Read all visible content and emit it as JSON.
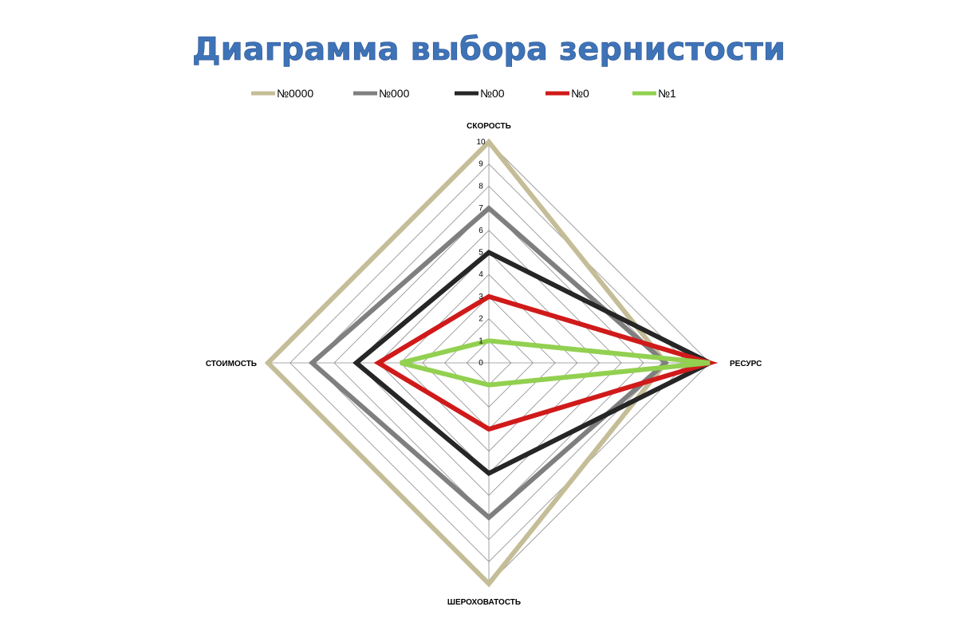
{
  "chart_data": {
    "type": "radar",
    "title": "Диаграмма выбора зернистости",
    "axes": [
      "СКОРОСТЬ",
      "РЕСУРС",
      "ШЕРОХОВАТОСТЬ",
      "СТОИМОСТЬ"
    ],
    "rlim": [
      0,
      10
    ],
    "ticks": [
      "0",
      "1",
      "2",
      "3",
      "4",
      "5",
      "6",
      "7",
      "8",
      "9",
      "10"
    ],
    "grid": true,
    "legend_position": "top",
    "series": [
      {
        "name": "№0000",
        "color": "#c4bd97",
        "values": [
          10,
          8,
          10,
          10
        ]
      },
      {
        "name": "№000",
        "color": "#7f7f7f",
        "values": [
          7,
          8,
          7,
          8
        ]
      },
      {
        "name": "№00",
        "color": "#262626",
        "values": [
          5,
          10,
          5,
          6
        ]
      },
      {
        "name": "№0",
        "color": "#d01a1a",
        "values": [
          3,
          10,
          3,
          5
        ]
      },
      {
        "name": "№1",
        "color": "#92d050",
        "values": [
          1,
          10,
          1,
          4
        ]
      }
    ]
  }
}
